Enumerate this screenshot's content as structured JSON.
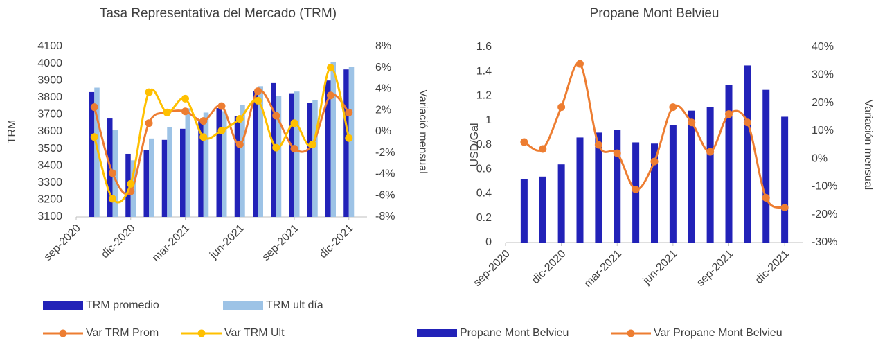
{
  "chart_data": [
    {
      "type": "bar",
      "title": "Tasa Representativa del Mercado (TRM)",
      "y_label": "TRM",
      "y2_label": "Variació mensual",
      "x": [
        "2020-10",
        "2020-11",
        "2020-12",
        "2021-01",
        "2021-02",
        "2021-03",
        "2021-04",
        "2021-05",
        "2021-06",
        "2021-07",
        "2021-08",
        "2021-09",
        "2021-10",
        "2021-11",
        "2021-12"
      ],
      "xlim": [
        "2020-09",
        "2022-01"
      ],
      "xticks": [
        {
          "value": "2020-09",
          "label": "sep-2020"
        },
        {
          "value": "2020-12",
          "label": "dic-2020"
        },
        {
          "value": "2021-03",
          "label": "mar-2021"
        },
        {
          "value": "2021-06",
          "label": "jun-2021"
        },
        {
          "value": "2021-09",
          "label": "sep-2021"
        },
        {
          "value": "2021-12",
          "label": "dic-2021"
        }
      ],
      "ylim": [
        3100,
        4100
      ],
      "yticks": [
        3100,
        3200,
        3300,
        3400,
        3500,
        3600,
        3700,
        3800,
        3900,
        4000,
        4100
      ],
      "y2lim": [
        -8,
        8
      ],
      "y2ticks": [
        {
          "value": -8,
          "label": "-8%"
        },
        {
          "value": -6,
          "label": "-6%"
        },
        {
          "value": -4,
          "label": "-4%"
        },
        {
          "value": -2,
          "label": "-2%"
        },
        {
          "value": 0,
          "label": "0%"
        },
        {
          "value": 2,
          "label": "2%"
        },
        {
          "value": 4,
          "label": "4%"
        },
        {
          "value": 6,
          "label": "6%"
        },
        {
          "value": 8,
          "label": "8%"
        }
      ],
      "legend": "bottom",
      "series": [
        {
          "name": "TRM promedio",
          "type": "bar",
          "color": "#2222b8",
          "values": [
            3832,
            3677,
            3470,
            3494,
            3552,
            3617,
            3660,
            3738,
            3690,
            3840,
            3885,
            3825,
            3770,
            3900,
            3965
          ]
        },
        {
          "name": "TRM ult día",
          "type": "bar",
          "color": "#9dc3e6",
          "values": [
            3858,
            3608,
            3432,
            3560,
            3625,
            3737,
            3712,
            3720,
            3757,
            3867,
            3808,
            3835,
            3785,
            4010,
            3981
          ]
        },
        {
          "name": "Var TRM Prom",
          "type": "line",
          "axis": "y2",
          "color": "#ed7d31",
          "values": [
            2.3,
            -3.9,
            -5.6,
            0.8,
            1.8,
            1.9,
            1.0,
            2.4,
            -1.2,
            3.8,
            1.5,
            -1.6,
            -1.2,
            3.4,
            1.8
          ]
        },
        {
          "name": "Var TRM Ult",
          "type": "line",
          "axis": "y2",
          "color": "#ffc000",
          "values": [
            -0.5,
            -6.3,
            -4.9,
            3.7,
            1.8,
            3.1,
            -0.5,
            0.1,
            1.2,
            2.9,
            -1.5,
            0.8,
            -1.2,
            6.0,
            -0.6
          ]
        }
      ]
    },
    {
      "type": "bar",
      "title": "Propane Mont Belvieu",
      "y_label": "USD/Gal",
      "y2_label": "Variación mensual",
      "x": [
        "2020-10",
        "2020-11",
        "2020-12",
        "2021-01",
        "2021-02",
        "2021-03",
        "2021-04",
        "2021-05",
        "2021-06",
        "2021-07",
        "2021-08",
        "2021-09",
        "2021-10",
        "2021-11",
        "2021-12"
      ],
      "xlim": [
        "2020-09",
        "2022-01"
      ],
      "xticks": [
        {
          "value": "2020-09",
          "label": "sep-2020"
        },
        {
          "value": "2020-12",
          "label": "dic-2020"
        },
        {
          "value": "2021-03",
          "label": "mar-2021"
        },
        {
          "value": "2021-06",
          "label": "jun-2021"
        },
        {
          "value": "2021-09",
          "label": "sep-2021"
        },
        {
          "value": "2021-12",
          "label": "dic-2021"
        }
      ],
      "ylim": [
        0,
        1.6
      ],
      "yticks": [
        0,
        0.2,
        0.4,
        0.6,
        0.8,
        1,
        1.2,
        1.4,
        1.6
      ],
      "y2lim": [
        -30,
        40
      ],
      "y2ticks": [
        {
          "value": -30,
          "label": "-30%"
        },
        {
          "value": -20,
          "label": "-20%"
        },
        {
          "value": -10,
          "label": "-10%"
        },
        {
          "value": 0,
          "label": "0%"
        },
        {
          "value": 10,
          "label": "10%"
        },
        {
          "value": 20,
          "label": "20%"
        },
        {
          "value": 30,
          "label": "30%"
        },
        {
          "value": 40,
          "label": "40%"
        }
      ],
      "legend": "bottom",
      "series": [
        {
          "name": "Propane Mont Belvieu",
          "type": "bar",
          "color": "#2222b8",
          "values": [
            0.52,
            0.54,
            0.64,
            0.86,
            0.9,
            0.92,
            0.82,
            0.81,
            0.96,
            1.08,
            1.11,
            1.29,
            1.45,
            1.25,
            1.03
          ]
        },
        {
          "name": "Var Propane Mont Belvieu",
          "type": "line",
          "axis": "y2",
          "color": "#ed7d31",
          "values": [
            6,
            3.5,
            18.5,
            34,
            5,
            2,
            -11,
            -1,
            18.5,
            13,
            2.5,
            16,
            13,
            -14,
            -17.5
          ]
        }
      ]
    }
  ]
}
